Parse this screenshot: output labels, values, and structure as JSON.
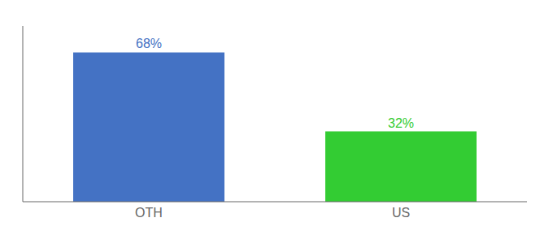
{
  "chart_data": {
    "type": "bar",
    "categories": [
      "OTH",
      "US"
    ],
    "values": [
      68,
      32
    ],
    "value_labels": [
      "68%",
      "32%"
    ],
    "colors": [
      "#4472c4",
      "#33cc33"
    ],
    "ylim": [
      0,
      80
    ],
    "data_labels": true,
    "tick_labels": "x",
    "grid": false
  }
}
